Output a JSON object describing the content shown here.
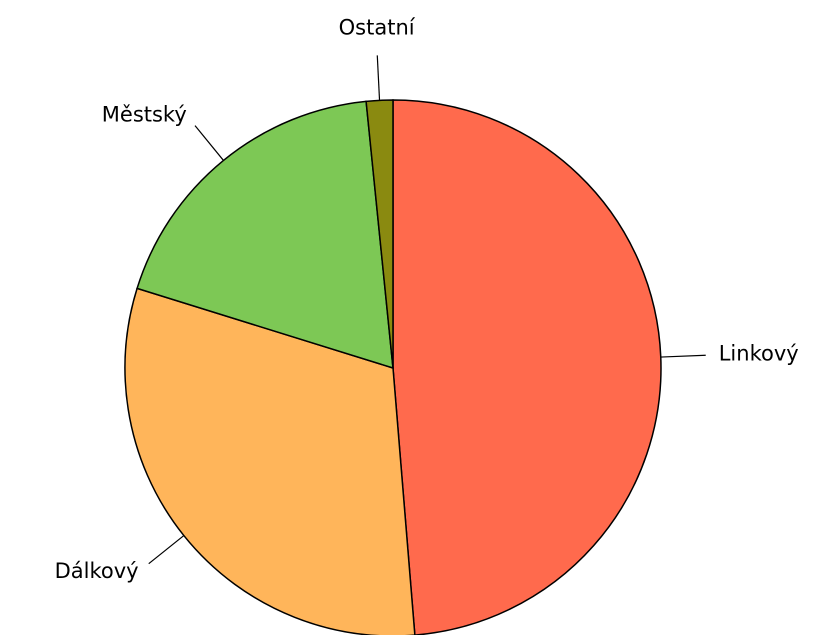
{
  "chart_data": {
    "type": "pie",
    "categories": [
      "Linkový",
      "Dálkový",
      "Městský",
      "Ostatní"
    ],
    "values": [
      48.7,
      31.1,
      18.6,
      1.6
    ],
    "colors": [
      "#ff6a4d",
      "#ffb55a",
      "#7dc855",
      "#8a8a10"
    ]
  }
}
